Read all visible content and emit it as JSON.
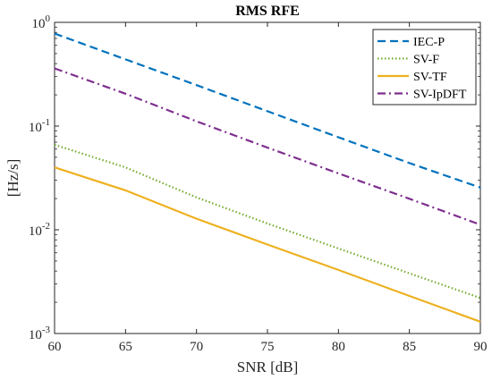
{
  "chart_data": {
    "type": "line",
    "title": "RMS RFE",
    "xlabel": "SNR [dB]",
    "ylabel": "[Hz/s]",
    "xlim": [
      60,
      90
    ],
    "ylim": [
      0.001,
      1
    ],
    "yscale": "log",
    "x_ticks": [
      60,
      65,
      70,
      75,
      80,
      85,
      90
    ],
    "y_ticks": [
      {
        "value": 0.001,
        "base": "10",
        "exp": "-3"
      },
      {
        "value": 0.01,
        "base": "10",
        "exp": "-2"
      },
      {
        "value": 0.1,
        "base": "10",
        "exp": "-1"
      },
      {
        "value": 1,
        "base": "10",
        "exp": "0"
      }
    ],
    "grid": false,
    "legend_position": "top-right",
    "x": [
      60,
      65,
      70,
      75,
      80,
      85,
      90
    ],
    "series": [
      {
        "name": "IEC-P",
        "color": "#0072BD",
        "dash": "dashed",
        "values": [
          0.78,
          0.44,
          0.248,
          0.139,
          0.078,
          0.044,
          0.0255
        ]
      },
      {
        "name": "SV-F",
        "color": "#77AC30",
        "dash": "dotted",
        "values": [
          0.066,
          0.04,
          0.0205,
          0.0115,
          0.0066,
          0.0038,
          0.0022
        ]
      },
      {
        "name": "SV-TF",
        "color": "#EDB120",
        "dash": "solid",
        "values": [
          0.04,
          0.024,
          0.0128,
          0.0072,
          0.0041,
          0.0023,
          0.0013
        ]
      },
      {
        "name": "SV-IpDFT",
        "color": "#7E2F8E",
        "dash": "dashdot",
        "values": [
          0.36,
          0.205,
          0.111,
          0.062,
          0.035,
          0.0199,
          0.0112
        ]
      }
    ]
  }
}
